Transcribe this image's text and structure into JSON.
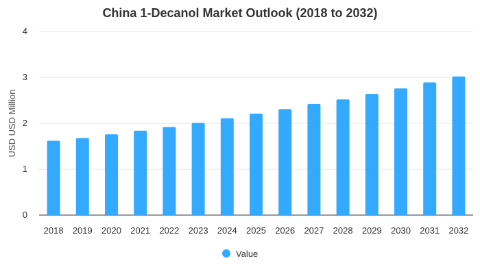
{
  "chart_data": {
    "type": "bar",
    "title": "China 1-Decanol Market Outlook (2018 to 2032)",
    "xlabel": "",
    "ylabel": "USD USD Million",
    "categories": [
      "2018",
      "2019",
      "2020",
      "2021",
      "2022",
      "2023",
      "2024",
      "2025",
      "2026",
      "2027",
      "2028",
      "2029",
      "2030",
      "2031",
      "2032"
    ],
    "series": [
      {
        "name": "Value",
        "color": "#33aaff",
        "values": [
          1.62,
          1.68,
          1.76,
          1.84,
          1.92,
          2.01,
          2.11,
          2.21,
          2.31,
          2.42,
          2.52,
          2.64,
          2.76,
          2.89,
          3.02
        ]
      }
    ],
    "ylim": [
      0,
      4
    ],
    "yticks": [
      0,
      1,
      2,
      3,
      4
    ],
    "grid": true,
    "legend_position": "bottom-center"
  }
}
